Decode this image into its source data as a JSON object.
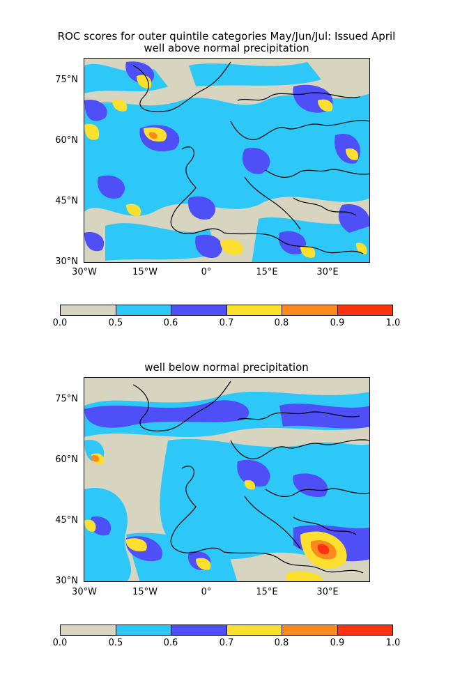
{
  "title_line1": "ROC scores for outer quintile categories May/Jun/Jul: Issued April",
  "maps": [
    {
      "subtitle": "well above normal precipitation"
    },
    {
      "subtitle": "well below normal precipitation"
    }
  ],
  "lat_labels": [
    "75°N",
    "60°N",
    "45°N",
    "30°N"
  ],
  "lon_labels": [
    "30°W",
    "15°W",
    "0°",
    "15°E",
    "30°E"
  ],
  "colorbar": {
    "ticks": [
      "0.0",
      "0.5",
      "0.6",
      "0.7",
      "0.8",
      "0.9",
      "1.0"
    ],
    "colors": [
      "#d7d4c0",
      "#2ec8f8",
      "#4f4ff8",
      "#fde02e",
      "#fb8a1e",
      "#f93210"
    ]
  }
}
